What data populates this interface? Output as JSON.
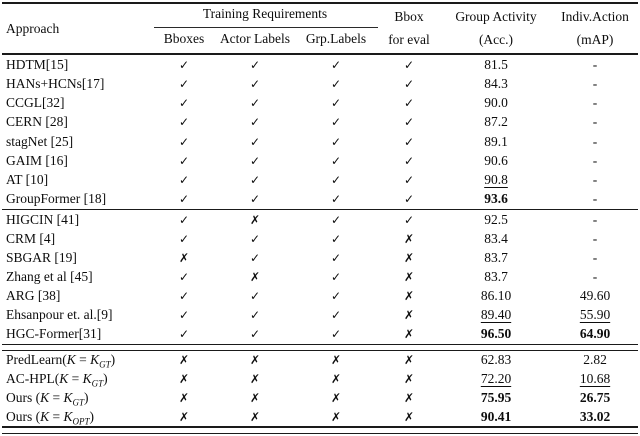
{
  "colors": {
    "text": "#0d0d0d",
    "rule": "#1a1a1a",
    "background": "#ffffff"
  },
  "glyphs": {
    "check": "✓",
    "cross": "✗",
    "dash": "-"
  },
  "header": {
    "approach": "Approach",
    "training_requirements": "Training Requirements",
    "sub_bboxes": "Bboxes",
    "sub_actor_labels": "Actor Labels",
    "sub_grp_labels": "Grp.Labels",
    "bbox_eval": [
      "Bbox",
      "for eval"
    ],
    "group_activity": [
      "Group Activity",
      "(Acc.)"
    ],
    "indiv_action": [
      "Indiv.Action",
      "(mAP)"
    ]
  },
  "sections": [
    {
      "rows": [
        {
          "approach": "HDTM[15]",
          "marks": [
            true,
            true,
            true,
            true
          ],
          "acc": {
            "v": "81.5",
            "s": "n"
          },
          "map": {
            "v": "-",
            "s": "n"
          }
        },
        {
          "approach": "HANs+HCNs[17]",
          "marks": [
            true,
            true,
            true,
            true
          ],
          "acc": {
            "v": "84.3",
            "s": "n"
          },
          "map": {
            "v": "-",
            "s": "n"
          }
        },
        {
          "approach": "CCGL[32]",
          "marks": [
            true,
            true,
            true,
            true
          ],
          "acc": {
            "v": "90.0",
            "s": "n"
          },
          "map": {
            "v": "-",
            "s": "n"
          }
        },
        {
          "approach": "CERN [28]",
          "marks": [
            true,
            true,
            true,
            true
          ],
          "acc": {
            "v": "87.2",
            "s": "n"
          },
          "map": {
            "v": "-",
            "s": "n"
          }
        },
        {
          "approach": "stagNet [25]",
          "marks": [
            true,
            true,
            true,
            true
          ],
          "acc": {
            "v": "89.1",
            "s": "n"
          },
          "map": {
            "v": "-",
            "s": "n"
          }
        },
        {
          "approach": "GAIM [16]",
          "marks": [
            true,
            true,
            true,
            true
          ],
          "acc": {
            "v": "90.6",
            "s": "n"
          },
          "map": {
            "v": "-",
            "s": "n"
          }
        },
        {
          "approach": "AT [10]",
          "marks": [
            true,
            true,
            true,
            true
          ],
          "acc": {
            "v": "90.8",
            "s": "u"
          },
          "map": {
            "v": "-",
            "s": "n"
          }
        },
        {
          "approach": "GroupFormer [18]",
          "marks": [
            true,
            true,
            true,
            true
          ],
          "acc": {
            "v": "93.6",
            "s": "b"
          },
          "map": {
            "v": "-",
            "s": "n"
          }
        }
      ]
    },
    {
      "rows": [
        {
          "approach": "HIGCIN [41]",
          "marks": [
            true,
            false,
            true,
            true
          ],
          "acc": {
            "v": "92.5",
            "s": "n"
          },
          "map": {
            "v": "-",
            "s": "n"
          }
        },
        {
          "approach": "CRM [4]",
          "marks": [
            true,
            true,
            true,
            false
          ],
          "acc": {
            "v": "83.4",
            "s": "n"
          },
          "map": {
            "v": "-",
            "s": "n"
          }
        },
        {
          "approach": "SBGAR [19]",
          "marks": [
            false,
            true,
            true,
            false
          ],
          "acc": {
            "v": "83.7",
            "s": "n"
          },
          "map": {
            "v": "-",
            "s": "n"
          }
        },
        {
          "approach": "Zhang et al [45]",
          "marks": [
            true,
            false,
            true,
            false
          ],
          "acc": {
            "v": "83.7",
            "s": "n"
          },
          "map": {
            "v": "-",
            "s": "n"
          }
        },
        {
          "approach": "ARG [38]",
          "marks": [
            true,
            true,
            true,
            false
          ],
          "acc": {
            "v": "86.10",
            "s": "n"
          },
          "map": {
            "v": "49.60",
            "s": "n"
          }
        },
        {
          "approach": "Ehsanpour et. al.[9]",
          "marks": [
            true,
            true,
            true,
            false
          ],
          "acc": {
            "v": "89.40",
            "s": "u"
          },
          "map": {
            "v": "55.90",
            "s": "u"
          }
        },
        {
          "approach": "HGC-Former[31]",
          "marks": [
            true,
            true,
            true,
            false
          ],
          "acc": {
            "v": "96.50",
            "s": "b"
          },
          "map": {
            "v": "64.90",
            "s": "b"
          }
        }
      ]
    },
    {
      "rows": [
        {
          "approach": "PredLearn(",
          "math_sub": "GT",
          "marks": [
            false,
            false,
            false,
            false
          ],
          "acc": {
            "v": "62.83",
            "s": "n"
          },
          "map": {
            "v": "2.82",
            "s": "n"
          }
        },
        {
          "approach": "AC-HPL(",
          "math_sub": "GT",
          "marks": [
            false,
            false,
            false,
            false
          ],
          "acc": {
            "v": "72.20",
            "s": "u"
          },
          "map": {
            "v": "10.68",
            "s": "u"
          }
        },
        {
          "approach": "Ours (",
          "math_sub": "GT",
          "marks": [
            false,
            false,
            false,
            false
          ],
          "acc": {
            "v": "75.95",
            "s": "b"
          },
          "map": {
            "v": "26.75",
            "s": "b"
          }
        },
        {
          "approach": "Ours (",
          "math_sub": "OPT",
          "marks": [
            false,
            false,
            false,
            false
          ],
          "acc": {
            "v": "90.41",
            "s": "b"
          },
          "map": {
            "v": "33.02",
            "s": "b"
          }
        }
      ]
    }
  ]
}
